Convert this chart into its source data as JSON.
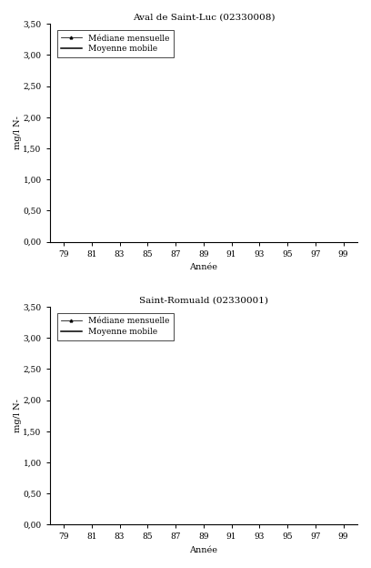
{
  "title1": "Aval de Saint-Luc (02330008)",
  "title2": "Saint-Romuald (02330001)",
  "ylabel": "mg/l N-",
  "xlabel": "Année",
  "legend_mediane": "Médiane mensuelle",
  "legend_moyenne": "Moyenne mobile",
  "yticks": [
    0.0,
    0.5,
    1.0,
    1.5,
    2.0,
    2.5,
    3.0,
    3.5
  ],
  "ytick_labels": [
    "0,00",
    "0,50",
    "1,00",
    "1,50",
    "2,00",
    "2,50",
    "3,00",
    "3,50"
  ],
  "xticks": [
    79,
    81,
    83,
    85,
    87,
    89,
    91,
    93,
    95,
    97,
    99
  ],
  "ylim": [
    0.0,
    3.5
  ],
  "xlim": [
    78,
    100
  ]
}
